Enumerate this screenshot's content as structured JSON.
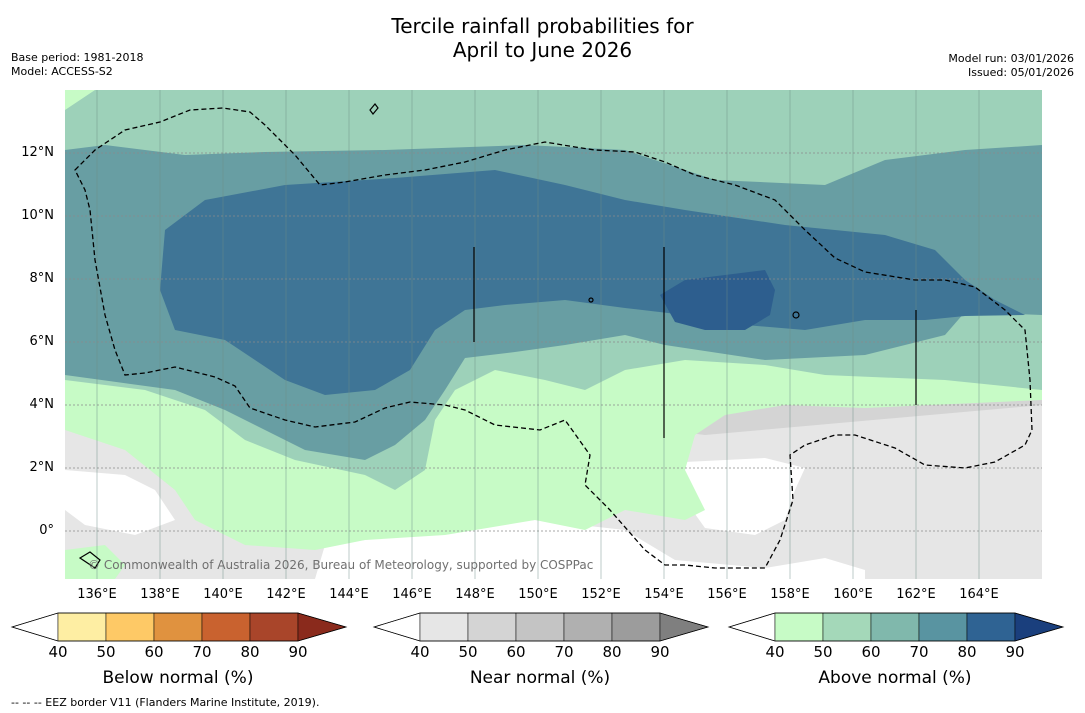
{
  "title_line1": "Tercile rainfall probabilities for",
  "title_line2": "April to June 2026",
  "base_period": "Base period: 1981-2018",
  "model": "Model: ACCESS-S2",
  "model_run": "Model run: 03/01/2026",
  "issued": "Issued: 05/01/2026",
  "lat_labels": [
    "12°N",
    "10°N",
    "8°N",
    "6°N",
    "4°N",
    "2°N",
    "0°"
  ],
  "lon_labels": [
    "136°E",
    "138°E",
    "140°E",
    "142°E",
    "144°E",
    "146°E",
    "148°E",
    "150°E",
    "152°E",
    "154°E",
    "156°E",
    "158°E",
    "160°E",
    "162°E",
    "164°E"
  ],
  "copyright": "© Commonwealth of Australia 2026, Bureau of Meteorology, supported by COSPPac",
  "colorbars": [
    {
      "title": "Below normal (%)",
      "ticks": [
        "40",
        "50",
        "60",
        "70",
        "80",
        "90"
      ],
      "colors": [
        "#ffffff",
        "#feeea3",
        "#fec966",
        "#e0923f",
        "#c9622f",
        "#a9452a",
        "#8a2a1c"
      ]
    },
    {
      "title": "Near normal (%)",
      "ticks": [
        "40",
        "50",
        "60",
        "70",
        "80",
        "90"
      ],
      "colors": [
        "#ffffff",
        "#e6e6e6",
        "#d4d4d4",
        "#c4c4c4",
        "#b0b0b0",
        "#9c9c9c",
        "#7f7f7f"
      ]
    },
    {
      "title": "Above normal (%)",
      "ticks": [
        "40",
        "50",
        "60",
        "70",
        "80",
        "90"
      ],
      "colors": [
        "#ffffff",
        "#c7fbc6",
        "#a4d8b9",
        "#80b8ac",
        "#5994a1",
        "#2f6393",
        "#1a3f7d"
      ]
    }
  ],
  "footnote": "--  --  -- EEZ border V11 (Flanders Marine Institute, 2019).",
  "colors": {
    "above_50": "#c7fbc6",
    "above_60": "#9dd1b9",
    "above_70": "#689ea3",
    "above_80": "#3f7596",
    "above_90": "#2d5e8e",
    "near_50": "#e6e6e6",
    "near_60": "#d4d4d4"
  }
}
